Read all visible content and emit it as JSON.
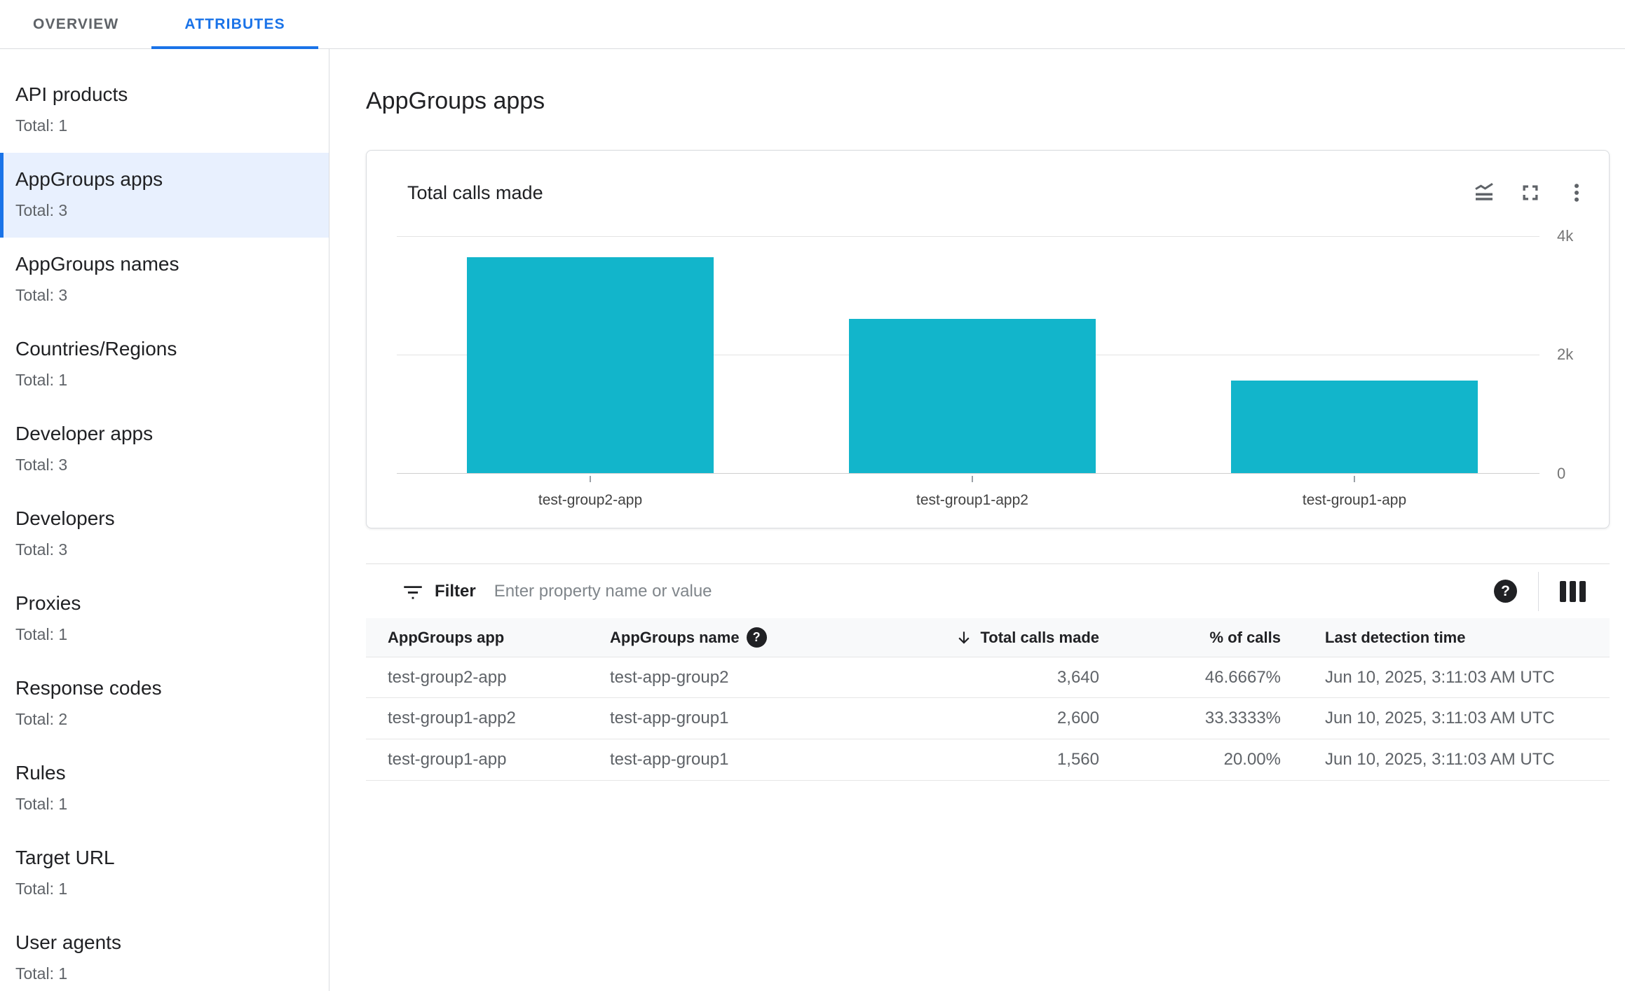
{
  "tabs": {
    "overview": "OVERVIEW",
    "attributes": "ATTRIBUTES"
  },
  "sidebar": {
    "items": [
      {
        "label": "API products",
        "total": "Total: 1",
        "selected": false
      },
      {
        "label": "AppGroups apps",
        "total": "Total: 3",
        "selected": true
      },
      {
        "label": "AppGroups names",
        "total": "Total: 3",
        "selected": false
      },
      {
        "label": "Countries/Regions",
        "total": "Total: 1",
        "selected": false
      },
      {
        "label": "Developer apps",
        "total": "Total: 3",
        "selected": false
      },
      {
        "label": "Developers",
        "total": "Total: 3",
        "selected": false
      },
      {
        "label": "Proxies",
        "total": "Total: 1",
        "selected": false
      },
      {
        "label": "Response codes",
        "total": "Total: 2",
        "selected": false
      },
      {
        "label": "Rules",
        "total": "Total: 1",
        "selected": false
      },
      {
        "label": "Target URL",
        "total": "Total: 1",
        "selected": false
      },
      {
        "label": "User agents",
        "total": "Total: 1",
        "selected": false
      }
    ]
  },
  "page": {
    "title": "AppGroups apps"
  },
  "chart_card": {
    "title": "Total calls made",
    "icons": [
      "stacked-line-chart",
      "fullscreen",
      "more-vert"
    ]
  },
  "chart_data": {
    "type": "bar",
    "title": "Total calls made",
    "categories": [
      "test-group2-app",
      "test-group1-app2",
      "test-group1-app"
    ],
    "values": [
      3640,
      2600,
      1560
    ],
    "ylim": [
      0,
      4000
    ],
    "ytick_labels": [
      "4k",
      "2k",
      "0"
    ],
    "bar_color": "#12b5cb",
    "grid": "horizontal-only",
    "axis_side": "right"
  },
  "filter": {
    "label": "Filter",
    "placeholder": "Enter property name or value"
  },
  "table": {
    "columns": [
      {
        "label": "AppGroups app"
      },
      {
        "label": "AppGroups name",
        "help": true
      },
      {
        "label": "Total calls made",
        "sorted": "desc",
        "align": "right"
      },
      {
        "label": "% of calls",
        "align": "right"
      },
      {
        "label": "Last detection time"
      }
    ],
    "rows": [
      [
        "test-group2-app",
        "test-app-group2",
        "3,640",
        "46.6667%",
        "Jun 10, 2025, 3:11:03 AM UTC"
      ],
      [
        "test-group1-app2",
        "test-app-group1",
        "2,600",
        "33.3333%",
        "Jun 10, 2025, 3:11:03 AM UTC"
      ],
      [
        "test-group1-app",
        "test-app-group1",
        "1,560",
        "20.00%",
        "Jun 10, 2025, 3:11:03 AM UTC"
      ]
    ]
  },
  "colors": {
    "accent": "#1a73e8",
    "bar": "#12b5cb",
    "selected_bg": "#e8f0fe"
  }
}
